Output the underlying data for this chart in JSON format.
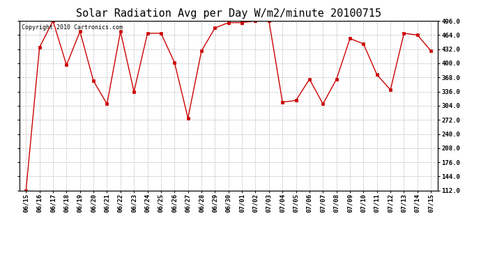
{
  "title": "Solar Radiation Avg per Day W/m2/minute 20100715",
  "copyright_text": "Copyright 2010 Cartronics.com",
  "x_labels": [
    "06/15",
    "06/16",
    "06/17",
    "06/18",
    "06/19",
    "06/20",
    "06/21",
    "06/22",
    "06/23",
    "06/24",
    "06/25",
    "06/26",
    "06/27",
    "06/28",
    "06/29",
    "06/30",
    "07/01",
    "07/02",
    "07/03",
    "07/04",
    "07/05",
    "07/06",
    "07/07",
    "07/08",
    "07/09",
    "07/10",
    "07/11",
    "07/12",
    "07/13",
    "07/14",
    "07/15"
  ],
  "y_values": [
    112,
    436,
    496,
    396,
    472,
    360,
    308,
    472,
    336,
    468,
    468,
    402,
    276,
    428,
    480,
    492,
    492,
    496,
    496,
    312,
    316,
    364,
    308,
    364,
    456,
    444,
    374,
    340,
    468,
    464,
    428
  ],
  "line_color": "#cc0000",
  "marker": "s",
  "marker_size": 2.5,
  "marker_color": "#cc0000",
  "bg_color": "#ffffff",
  "plot_bg_color": "#ffffff",
  "grid_color": "#bbbbbb",
  "grid_style": "--",
  "ylim_min": 112.0,
  "ylim_max": 496.0,
  "ytick_values": [
    112.0,
    144.0,
    176.0,
    208.0,
    240.0,
    272.0,
    304.0,
    336.0,
    368.0,
    400.0,
    432.0,
    464.0,
    496.0
  ],
  "title_fontsize": 11,
  "tick_fontsize": 6.5,
  "copyright_fontsize": 6
}
